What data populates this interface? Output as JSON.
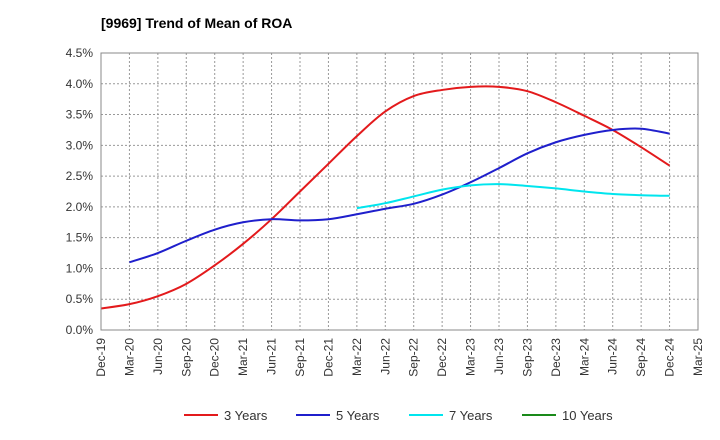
{
  "chart_data": {
    "type": "line",
    "title": "[9969]  Trend of Mean of ROA",
    "xlabel": "",
    "ylabel": "",
    "x": [
      "Dec-19",
      "Mar-20",
      "Jun-20",
      "Sep-20",
      "Dec-20",
      "Mar-21",
      "Jun-21",
      "Sep-21",
      "Dec-21",
      "Mar-22",
      "Jun-22",
      "Sep-22",
      "Dec-22",
      "Mar-23",
      "Jun-23",
      "Sep-23",
      "Dec-23",
      "Mar-24",
      "Jun-24",
      "Sep-24",
      "Dec-24",
      "Mar-25"
    ],
    "ylim": [
      0,
      4.5
    ],
    "yticks": [
      "0.0%",
      "0.5%",
      "1.0%",
      "1.5%",
      "2.0%",
      "2.5%",
      "3.0%",
      "3.5%",
      "4.0%",
      "4.5%"
    ],
    "y_step": 0.5,
    "grid": true,
    "legend_position": "bottom",
    "series": [
      {
        "name": "3 Years",
        "color": "#e31a1c",
        "values": [
          0.35,
          0.42,
          0.55,
          0.75,
          1.05,
          1.4,
          1.8,
          2.25,
          2.7,
          3.15,
          3.55,
          3.8,
          3.9,
          3.95,
          3.95,
          3.88,
          3.7,
          3.48,
          3.25,
          2.97,
          2.67,
          null
        ]
      },
      {
        "name": "5 Years",
        "color": "#1f1fcc",
        "values": [
          null,
          1.1,
          1.25,
          1.45,
          1.63,
          1.75,
          1.8,
          1.78,
          1.8,
          1.88,
          1.97,
          2.05,
          2.2,
          2.4,
          2.63,
          2.87,
          3.05,
          3.17,
          3.25,
          3.27,
          3.19,
          null
        ]
      },
      {
        "name": "7 Years",
        "color": "#00e5ee",
        "values": [
          null,
          null,
          null,
          null,
          null,
          null,
          null,
          null,
          null,
          1.98,
          2.06,
          2.17,
          2.28,
          2.35,
          2.37,
          2.34,
          2.3,
          2.25,
          2.21,
          2.19,
          2.18,
          null
        ]
      },
      {
        "name": "10 Years",
        "color": "#1a8a1a",
        "values": [
          null,
          null,
          null,
          null,
          null,
          null,
          null,
          null,
          null,
          null,
          null,
          null,
          null,
          null,
          null,
          null,
          null,
          null,
          null,
          null,
          null,
          null
        ]
      }
    ]
  }
}
